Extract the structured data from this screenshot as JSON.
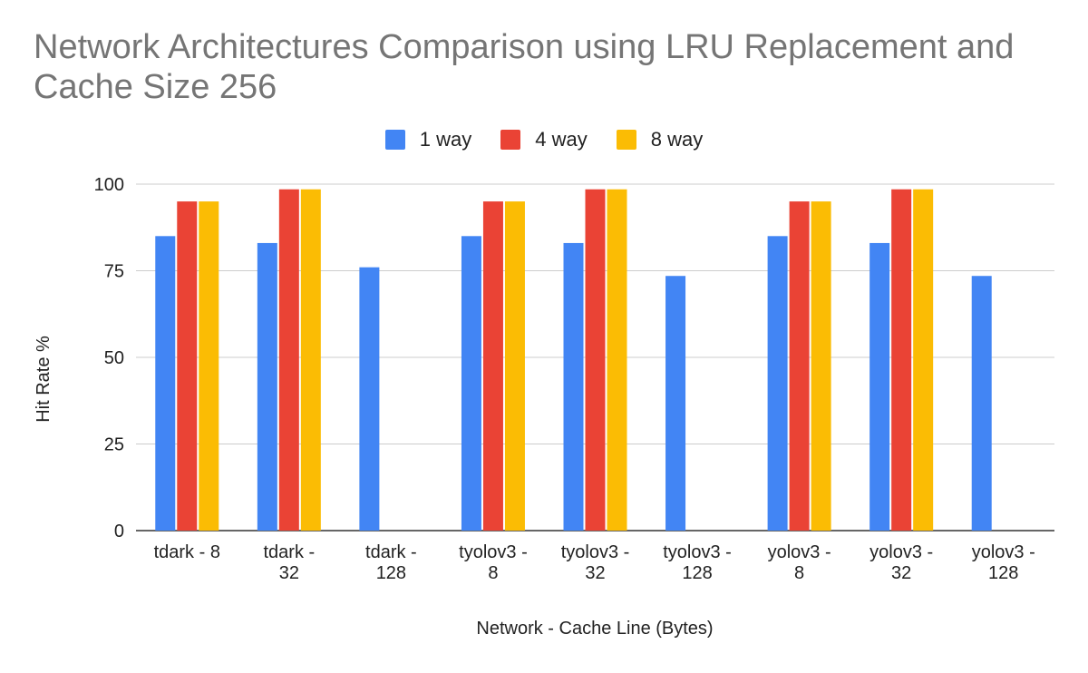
{
  "chart_data": {
    "type": "bar",
    "title": "Network Architectures Comparison using LRU Replacement and Cache Size 256",
    "xlabel": "Network - Cache Line (Bytes)",
    "ylabel": "Hit Rate %",
    "ylim": [
      0,
      100
    ],
    "yticks": [
      "0",
      "25",
      "50",
      "75",
      "100"
    ],
    "ytick_values": [
      0,
      25,
      50,
      75,
      100
    ],
    "grid": true,
    "legend_position": "top",
    "categories": [
      [
        "tdark - 8"
      ],
      [
        "tdark -",
        "32"
      ],
      [
        "tdark -",
        "128"
      ],
      [
        "tyolov3 -",
        "8"
      ],
      [
        "tyolov3 -",
        "32"
      ],
      [
        "tyolov3 -",
        "128"
      ],
      [
        "yolov3 -",
        "8"
      ],
      [
        "yolov3 -",
        "32"
      ],
      [
        "yolov3 -",
        "128"
      ]
    ],
    "series": [
      {
        "name": "1 way",
        "color": "#4285F4",
        "values": [
          85,
          83,
          76,
          85,
          83,
          73.5,
          85,
          83,
          73.5
        ]
      },
      {
        "name": "4 way",
        "color": "#EA4335",
        "values": [
          95,
          98.5,
          null,
          95,
          98.5,
          null,
          95,
          98.5,
          null
        ]
      },
      {
        "name": "8 way",
        "color": "#FBBC04",
        "values": [
          95,
          98.5,
          null,
          95,
          98.5,
          null,
          95,
          98.5,
          null
        ]
      }
    ]
  }
}
